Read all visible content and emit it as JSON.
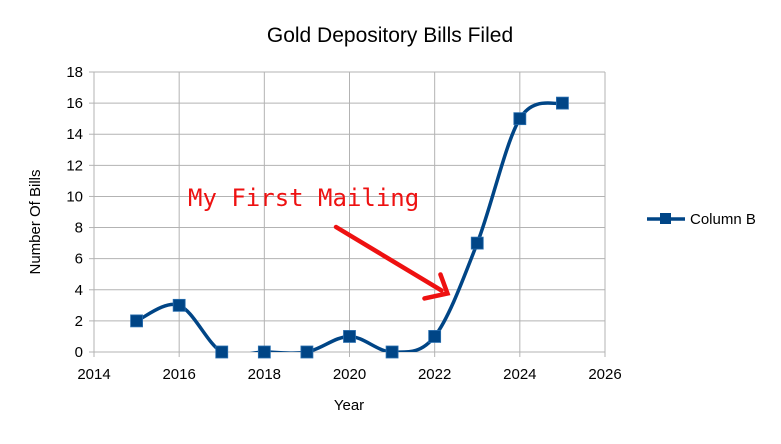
{
  "chart_data": {
    "type": "line",
    "title": "Gold Depository Bills Filed",
    "xlabel": "Year",
    "ylabel": "Number Of Bills",
    "xlim": [
      2014,
      2026
    ],
    "ylim": [
      0,
      18
    ],
    "x_ticks": [
      "2014",
      "2016",
      "2018",
      "2020",
      "2022",
      "2024",
      "2026"
    ],
    "y_ticks": [
      "0",
      "2",
      "4",
      "6",
      "8",
      "10",
      "12",
      "14",
      "16",
      "18"
    ],
    "grid": true,
    "legend": "right",
    "series": [
      {
        "name": "Column B",
        "color": "#004586",
        "smooth": true,
        "marker": "square",
        "points": [
          {
            "x": 2015,
            "y": 2
          },
          {
            "x": 2016,
            "y": 3
          },
          {
            "x": 2017,
            "y": 0
          },
          {
            "x": 2018,
            "y": 0
          },
          {
            "x": 2019,
            "y": 0
          },
          {
            "x": 2020,
            "y": 1
          },
          {
            "x": 2021,
            "y": 0
          },
          {
            "x": 2022,
            "y": 1
          },
          {
            "x": 2023,
            "y": 7
          },
          {
            "x": 2024,
            "y": 15
          },
          {
            "x": 2025,
            "y": 16
          }
        ]
      }
    ],
    "annotation": {
      "text": "My First Mailing",
      "color": "#ee1111",
      "points_to": {
        "x": 2022.3,
        "y": 3.7
      }
    }
  }
}
